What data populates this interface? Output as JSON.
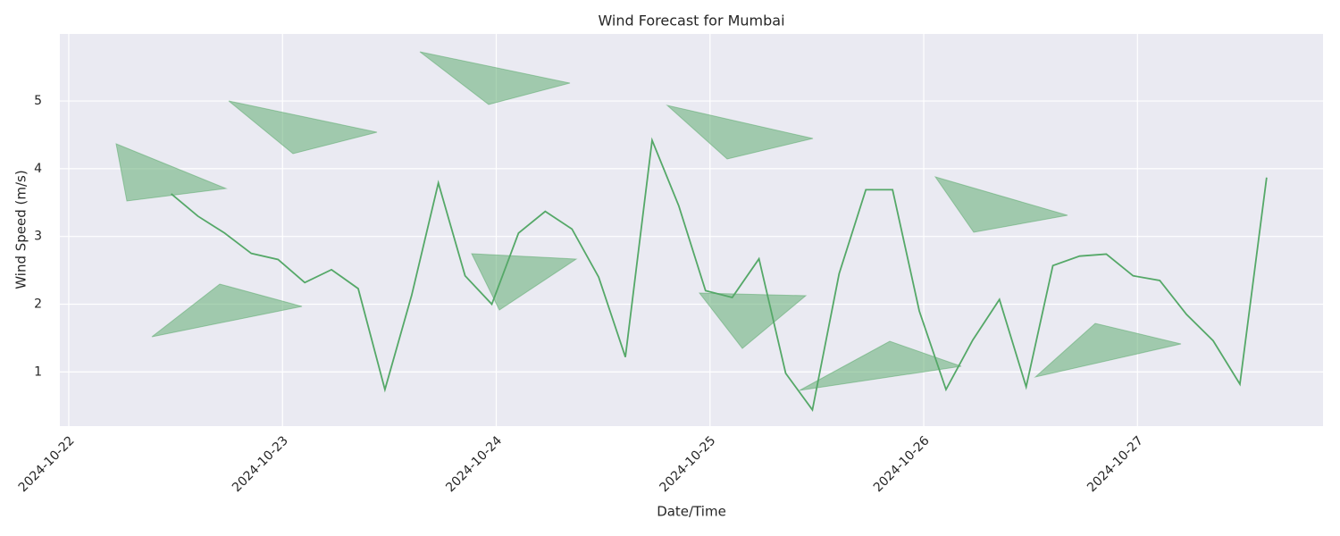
{
  "chart_data": {
    "type": "line",
    "title": "Wind Forecast for Mumbai",
    "x_label": "Date/Time",
    "y_label": "Wind Speed (m/s)",
    "x": [
      "2024-10-22T11:30",
      "2024-10-22T14:30",
      "2024-10-22T17:30",
      "2024-10-22T20:30",
      "2024-10-22T23:30",
      "2024-10-23T02:30",
      "2024-10-23T05:30",
      "2024-10-23T08:30",
      "2024-10-23T11:30",
      "2024-10-23T14:30",
      "2024-10-23T17:30",
      "2024-10-23T20:30",
      "2024-10-23T23:30",
      "2024-10-24T02:30",
      "2024-10-24T05:30",
      "2024-10-24T08:30",
      "2024-10-24T11:30",
      "2024-10-24T14:30",
      "2024-10-24T17:30",
      "2024-10-24T20:30",
      "2024-10-24T23:30",
      "2024-10-25T02:30",
      "2024-10-25T05:30",
      "2024-10-25T08:30",
      "2024-10-25T11:30",
      "2024-10-25T14:30",
      "2024-10-25T17:30",
      "2024-10-25T20:30",
      "2024-10-25T23:30",
      "2024-10-26T02:30",
      "2024-10-26T05:30",
      "2024-10-26T08:30",
      "2024-10-26T11:30",
      "2024-10-26T14:30",
      "2024-10-26T17:30",
      "2024-10-26T20:30",
      "2024-10-26T23:30",
      "2024-10-27T02:30",
      "2024-10-27T05:30",
      "2024-10-27T08:30",
      "2024-10-27T11:30",
      "2024-10-27T14:30"
    ],
    "series": [
      {
        "name": "Wind Speed",
        "color": "#55a868",
        "values": [
          3.63,
          3.3,
          3.05,
          2.75,
          2.66,
          2.32,
          2.51,
          2.23,
          0.74,
          2.13,
          3.79,
          2.42,
          2.0,
          3.05,
          3.37,
          3.11,
          2.4,
          1.22,
          4.42,
          3.45,
          2.2,
          2.1,
          2.67,
          0.98,
          0.44,
          2.45,
          3.69,
          3.69,
          1.9,
          0.74,
          1.47,
          2.07,
          0.78,
          2.57,
          2.71,
          2.74,
          2.42,
          2.35,
          1.85,
          1.46,
          0.82,
          3.87
        ]
      }
    ],
    "xlim": [
      "2024-10-21T23:00",
      "2024-10-27T20:50"
    ],
    "xticks": [
      "2024-10-22",
      "2024-10-23",
      "2024-10-24",
      "2024-10-25",
      "2024-10-26",
      "2024-10-27"
    ],
    "ylim": [
      0.2,
      5.99
    ],
    "yticks": [
      1,
      2,
      3,
      4,
      5
    ],
    "grid": true
  }
}
